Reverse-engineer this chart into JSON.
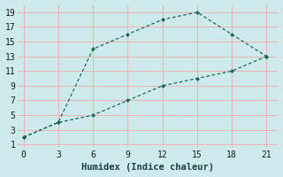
{
  "line1_x": [
    0,
    3,
    6,
    9,
    12,
    15,
    18,
    21
  ],
  "line1_y": [
    2,
    4,
    14,
    16,
    18,
    19,
    16,
    13
  ],
  "line2_x": [
    0,
    3,
    6,
    9,
    12,
    15,
    18,
    21
  ],
  "line2_y": [
    2,
    4,
    5,
    7,
    9,
    10,
    11,
    13
  ],
  "line_color": "#1a6b5a",
  "bg_color": "#ceeaea",
  "grid_color_v": "#e8b8b8",
  "grid_color_h": "#c8dede",
  "xlabel": "Humidex (Indice chaleur)",
  "xlim": [
    -0.5,
    22
  ],
  "ylim": [
    0.5,
    20
  ],
  "xticks": [
    0,
    3,
    6,
    9,
    12,
    15,
    18,
    21
  ],
  "yticks": [
    1,
    3,
    5,
    7,
    9,
    11,
    13,
    15,
    17,
    19
  ],
  "xlabel_fontsize": 7.5,
  "tick_fontsize": 7
}
